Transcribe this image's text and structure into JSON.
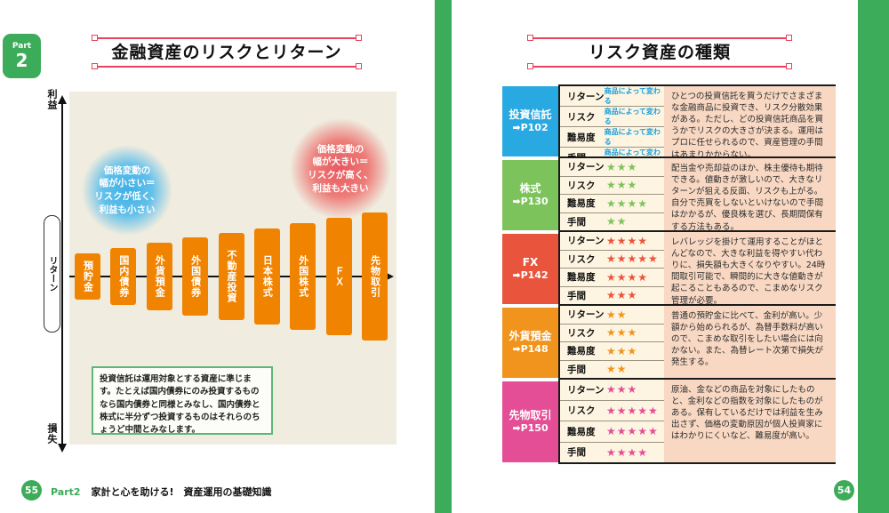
{
  "colors": {
    "green_accent": "#3cab5a",
    "title_rule_red": "#e8435c",
    "plot_background": "#f0ecdf",
    "bar_orange": "#f08300",
    "metrics_background": "#fdf5e1",
    "description_background": "#f8d8c3",
    "rating_text_blue": "#1a9ddb"
  },
  "left": {
    "badge": {
      "part": "Part",
      "number": "2"
    },
    "title": "金融資産のリスクとリターン",
    "chart": {
      "type": "bar",
      "y_top": "利益",
      "y_bottom": "損失",
      "y_box": "リターン",
      "bubble_low": "価格変動の\n幅が小さい＝\nリスクが低く、\n利益も小さい",
      "bubble_high": "価格変動の\n幅が大きい＝\nリスクが高く、\n利益も大きい",
      "bars": [
        {
          "label": "預貯金",
          "height": 52
        },
        {
          "label": "国内債券",
          "height": 64
        },
        {
          "label": "外貨預金",
          "height": 76
        },
        {
          "label": "外国債券",
          "height": 88
        },
        {
          "label": "不動産投資",
          "height": 98
        },
        {
          "label": "日本株式",
          "height": 108
        },
        {
          "label": "外国株式",
          "height": 120
        },
        {
          "label": "ＦＸ",
          "height": 132
        },
        {
          "label": "先物取引",
          "height": 144
        }
      ],
      "note": "投資信託は運用対象とする資産に準じます。たとえば国内債券にのみ投資するものなら国内債券と同様とみなし、国内債券と株式に半分ずつ投資するものはそれらのちょうど中間とみなします。"
    },
    "footer": {
      "page": "55",
      "part": "Part2",
      "section": "家計と心を助ける!　資産運用の基礎知識"
    }
  },
  "right": {
    "title": "リスク資産の種類",
    "table": {
      "metric_labels": [
        "リターン",
        "リスク",
        "難易度",
        "手間"
      ],
      "rows": [
        {
          "category": "投資信託",
          "page_ref": "➡P102",
          "color": "#29a9e1",
          "rating_text": "商品によって変わる",
          "description": "ひとつの投資信託を買うだけでさまざまな金融商品に投資でき、リスク分散効果がある。ただし、どの投資信託商品を買うかでリスクの大きさが決まる。運用はプロに任せられるので、資産管理の手間はあまりかからない。",
          "height": 83
        },
        {
          "category": "株式",
          "page_ref": "➡P130",
          "color": "#7dc35c",
          "stars": [
            3,
            3,
            4,
            2
          ],
          "description": "配当金や売却益のほか、株主優待も期待できる。値動きが激しいので、大きなリターンが狙える反面、リスクも上がる。自分で売買をしないといけないので手間はかかるが、優良株を選び、長期間保有する方法もある。",
          "height": 83
        },
        {
          "category": "FX",
          "page_ref": "➡P142",
          "color": "#e9543d",
          "stars": [
            4,
            5,
            4,
            3
          ],
          "description": "レバレッジを掛けて運用することがほとんどなので、大きな利益を得やすい代わりに、損失額も大きくなりやすい。24時間取引可能で、瞬間的に大きな値動きが起こることもあるので、こまめなリスク管理が必要。",
          "height": 83
        },
        {
          "category": "外貨預金",
          "page_ref": "➡P148",
          "color": "#f0941e",
          "stars": [
            2,
            3,
            3,
            2
          ],
          "description": "普通の預貯金に比べて、金利が高い。少額から始められるが、為替手数料が高いので、こまめな取引をしたい場合には向かない。また、為替レート次第で損失が発生する。",
          "height": 83
        },
        {
          "category": "先物取引",
          "page_ref": "➡P150",
          "color": "#e44e96",
          "stars": [
            3,
            5,
            5,
            4
          ],
          "description": "原油、金などの商品を対象にしたものと、金利などの指数を対象にしたものがある。保有しているだけでは利益を生み出さず、価格の変動原因が個人投資家にはわかりにくいなど、難易度が高い。",
          "height": 95
        }
      ]
    },
    "footer": {
      "page": "54"
    }
  }
}
